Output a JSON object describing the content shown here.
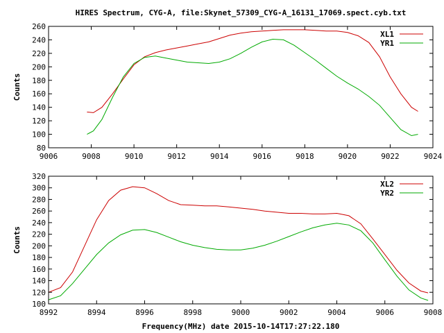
{
  "title": "HIRES Spectrum, CYG-A, file:Skynet_57309_CYG-A_16131_17069.spect.cyb.txt",
  "xlabel": "Frequency(MHz) date 2015-10-14T17:27:22.180",
  "colors": {
    "series1": "#cc0000",
    "series2": "#00aa00",
    "axis": "#000000",
    "background": "#ffffff"
  },
  "chart_data": [
    {
      "type": "line",
      "title": "HIRES Spectrum, CYG-A, file:Skynet_57309_CYG-A_16131_17069.spect.cyb.txt",
      "xlabel": "",
      "ylabel": "Counts",
      "xlim": [
        9006,
        9024
      ],
      "ylim": [
        80,
        260
      ],
      "xticks": [
        9006,
        9008,
        9010,
        9012,
        9014,
        9016,
        9018,
        9020,
        9022,
        9024
      ],
      "yticks": [
        80,
        100,
        120,
        140,
        160,
        180,
        200,
        220,
        240,
        260
      ],
      "grid": false,
      "legend_position": "top-right",
      "series": [
        {
          "name": "XL1",
          "color": "#cc0000",
          "x": [
            9007.8,
            9008.1,
            9008.5,
            9009.0,
            9009.5,
            9010.0,
            9010.5,
            9011.0,
            9011.5,
            9012.0,
            9012.5,
            9013.0,
            9013.5,
            9014.0,
            9014.5,
            9015.0,
            9015.5,
            9016.0,
            9016.5,
            9017.0,
            9017.5,
            9018.0,
            9018.5,
            9019.0,
            9019.5,
            9020.0,
            9020.5,
            9021.0,
            9021.5,
            9022.0,
            9022.5,
            9023.0,
            9023.3
          ],
          "y": [
            133,
            132,
            140,
            160,
            182,
            203,
            215,
            221,
            225,
            228,
            231,
            234,
            237,
            242,
            247,
            250,
            252,
            253,
            254,
            255,
            255,
            255,
            254,
            253,
            253,
            251,
            246,
            236,
            215,
            185,
            160,
            140,
            134
          ]
        },
        {
          "name": "YR1",
          "color": "#00aa00",
          "x": [
            9007.8,
            9008.1,
            9008.5,
            9009.0,
            9009.5,
            9010.0,
            9010.5,
            9011.0,
            9011.5,
            9012.0,
            9012.5,
            9013.0,
            9013.5,
            9014.0,
            9014.5,
            9015.0,
            9015.5,
            9016.0,
            9016.5,
            9017.0,
            9017.5,
            9018.0,
            9018.5,
            9019.0,
            9019.5,
            9020.0,
            9020.5,
            9021.0,
            9021.5,
            9022.0,
            9022.5,
            9023.0,
            9023.3
          ],
          "y": [
            100,
            105,
            122,
            155,
            185,
            205,
            214,
            216,
            213,
            210,
            207,
            206,
            205,
            207,
            212,
            220,
            229,
            237,
            241,
            240,
            232,
            221,
            210,
            198,
            186,
            176,
            167,
            156,
            143,
            125,
            107,
            98,
            100
          ]
        }
      ]
    },
    {
      "type": "line",
      "title": "",
      "xlabel": "Frequency(MHz) date 2015-10-14T17:27:22.180",
      "ylabel": "Counts",
      "xlim": [
        8992,
        9008
      ],
      "ylim": [
        100,
        320
      ],
      "xticks": [
        8992,
        8994,
        8996,
        8998,
        9000,
        9002,
        9004,
        9006,
        9008
      ],
      "yticks": [
        100,
        120,
        140,
        160,
        180,
        200,
        220,
        240,
        260,
        280,
        300,
        320
      ],
      "grid": false,
      "legend_position": "top-right",
      "series": [
        {
          "name": "XL2",
          "color": "#cc0000",
          "x": [
            8992.0,
            8992.5,
            8993.0,
            8993.5,
            8994.0,
            8994.5,
            8995.0,
            8995.5,
            8996.0,
            8996.5,
            8997.0,
            8997.5,
            8998.0,
            8998.5,
            8999.0,
            8999.5,
            9000.0,
            9000.5,
            9001.0,
            9001.5,
            9002.0,
            9002.5,
            9003.0,
            9003.5,
            9004.0,
            9004.5,
            9005.0,
            9005.5,
            9006.0,
            9006.5,
            9007.0,
            9007.5,
            9007.8
          ],
          "y": [
            120,
            128,
            155,
            200,
            245,
            278,
            296,
            302,
            300,
            290,
            278,
            271,
            270,
            269,
            269,
            267,
            265,
            263,
            260,
            258,
            256,
            256,
            255,
            255,
            256,
            252,
            238,
            212,
            185,
            158,
            136,
            122,
            119
          ]
        },
        {
          "name": "YR2",
          "color": "#00aa00",
          "x": [
            8992.0,
            8992.5,
            8993.0,
            8993.5,
            8994.0,
            8994.5,
            8995.0,
            8995.5,
            8996.0,
            8996.5,
            8997.0,
            8997.5,
            8998.0,
            8998.5,
            8999.0,
            8999.5,
            9000.0,
            9000.5,
            9001.0,
            9001.5,
            9002.0,
            9002.5,
            9003.0,
            9003.5,
            9004.0,
            9004.5,
            9005.0,
            9005.5,
            9006.0,
            9006.5,
            9007.0,
            9007.5,
            9007.8
          ],
          "y": [
            107,
            114,
            135,
            160,
            185,
            205,
            219,
            227,
            228,
            223,
            215,
            207,
            201,
            197,
            194,
            193,
            193,
            196,
            201,
            208,
            216,
            224,
            231,
            236,
            239,
            236,
            226,
            205,
            176,
            148,
            124,
            110,
            106
          ]
        }
      ]
    }
  ]
}
